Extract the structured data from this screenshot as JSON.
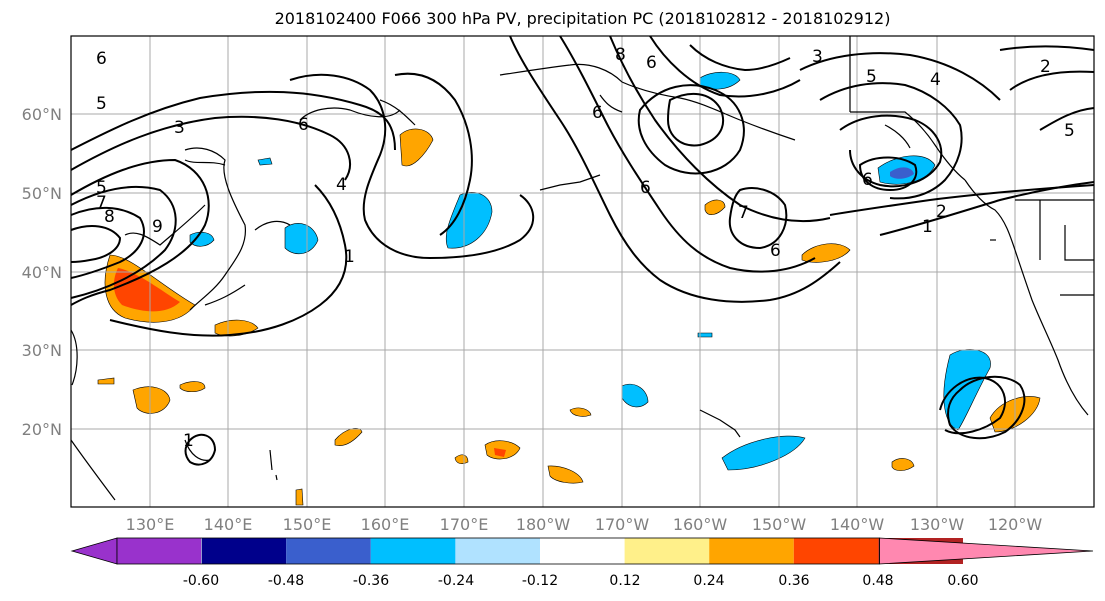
{
  "title": "2018102400 F066 300 hPa PV, precipitation PC (2018102812 - 2018102912)",
  "lat_labels": [
    "60°N",
    "50°N",
    "40°N",
    "30°N",
    "20°N"
  ],
  "lon_labels": [
    "130°E",
    "140°E",
    "150°E",
    "160°E",
    "170°E",
    "180°W",
    "170°W",
    "160°W",
    "150°W",
    "140°W",
    "130°W",
    "120°W"
  ],
  "colorbar": {
    "colors": [
      "#9932cc",
      "#00008b",
      "#3a5fcd",
      "#00bfff",
      "#b0e2ff",
      "#ffffff",
      "#fff08a",
      "#ffa500",
      "#ff4500",
      "#b22222",
      "#ff88b0"
    ],
    "tick_labels": [
      "-0.60",
      "-0.48",
      "-0.36",
      "-0.24",
      "-0.12",
      "0.12",
      "0.24",
      "0.36",
      "0.48",
      "0.60"
    ]
  },
  "contour_labels": [
    "6",
    "5",
    "3",
    "5",
    "7",
    "8",
    "9",
    "6",
    "4",
    "1",
    "8",
    "6",
    "6",
    "3",
    "5",
    "4",
    "2",
    "5",
    "6",
    "7",
    "6",
    "1",
    "2",
    "6",
    "1"
  ],
  "colors": {
    "grid": "#a9a9a9",
    "coast": "#000000",
    "contour": "#000000"
  }
}
